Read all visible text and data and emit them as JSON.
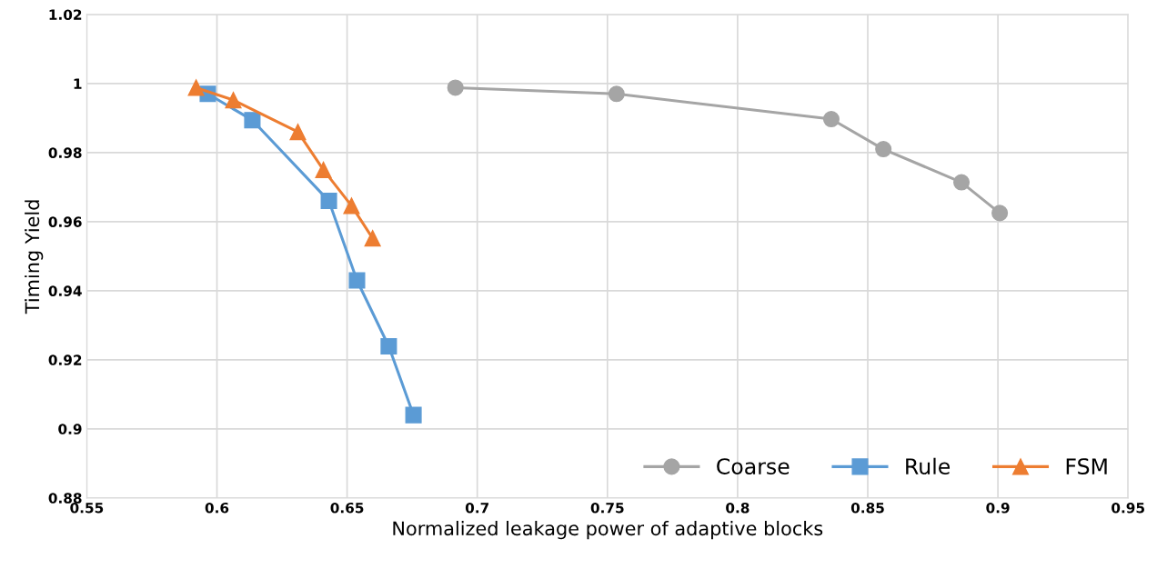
{
  "chart_data": {
    "type": "line",
    "xlabel": "Normalized leakage power of adaptive blocks",
    "ylabel": "Timing Yield",
    "xlim": [
      0.55,
      0.95
    ],
    "xticks": [
      0.55,
      0.6,
      0.65,
      0.7,
      0.75,
      0.8,
      0.85,
      0.9,
      0.95
    ],
    "ylim": [
      0.88,
      1.02
    ],
    "yticks": [
      0.88,
      0.9,
      0.92,
      0.94,
      0.96,
      0.98,
      1,
      1.02
    ],
    "grid": true,
    "legend": "bottom right",
    "line_style": "solid",
    "series": [
      {
        "name": "Coarse",
        "color": "#a5a5a5",
        "marker": "circle",
        "x": [
          0.6916,
          0.7535,
          0.836,
          0.856,
          0.886,
          0.9007
        ],
        "values": [
          0.9988,
          0.997,
          0.9897,
          0.981,
          0.9714,
          0.9625
        ]
      },
      {
        "name": "Rule",
        "color": "#5b9bd5",
        "marker": "square",
        "x": [
          0.5965,
          0.6136,
          0.643,
          0.6538,
          0.666,
          0.6755
        ],
        "values": [
          0.997,
          0.9894,
          0.966,
          0.943,
          0.9239,
          0.904
        ]
      },
      {
        "name": "FSM",
        "color": "#ed7d31",
        "marker": "triangle",
        "x": [
          0.592,
          0.6063,
          0.6311,
          0.6409,
          0.6517,
          0.6598
        ],
        "values": [
          0.9988,
          0.9952,
          0.986,
          0.975,
          0.9646,
          0.9552
        ]
      }
    ]
  }
}
